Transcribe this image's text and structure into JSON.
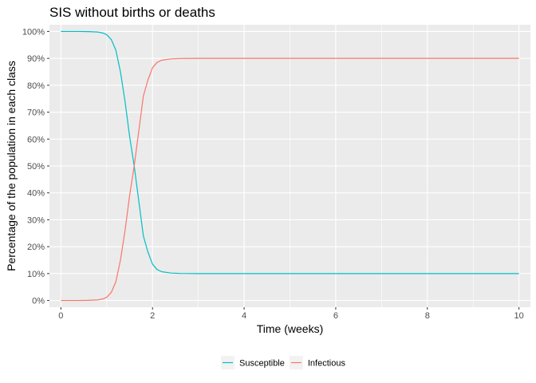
{
  "chart_data": {
    "type": "line",
    "title": "SIS without births or deaths",
    "xlabel": "Time (weeks)",
    "ylabel": "Percentage of the population in each class",
    "xlim": [
      -0.25,
      10.25
    ],
    "ylim": [
      -0.025,
      1.025
    ],
    "x_ticks": [
      {
        "value": 0,
        "label": "0"
      },
      {
        "value": 2,
        "label": "2"
      },
      {
        "value": 4,
        "label": "4"
      },
      {
        "value": 6,
        "label": "6"
      },
      {
        "value": 8,
        "label": "8"
      },
      {
        "value": 10,
        "label": "10"
      }
    ],
    "y_ticks": [
      {
        "value": 0.0,
        "label": "0%"
      },
      {
        "value": 0.1,
        "label": "10%"
      },
      {
        "value": 0.2,
        "label": "20%"
      },
      {
        "value": 0.3,
        "label": "30%"
      },
      {
        "value": 0.4,
        "label": "40%"
      },
      {
        "value": 0.5,
        "label": "50%"
      },
      {
        "value": 0.6,
        "label": "60%"
      },
      {
        "value": 0.7,
        "label": "70%"
      },
      {
        "value": 0.8,
        "label": "80%"
      },
      {
        "value": 0.9,
        "label": "90%"
      },
      {
        "value": 1.0,
        "label": "100%"
      }
    ],
    "grid": true,
    "panel_background": "#ebebeb",
    "grid_color": "#ffffff",
    "legend_position": "bottom",
    "x": [
      0,
      0.2,
      0.4,
      0.6,
      0.8,
      0.9,
      1.0,
      1.1,
      1.2,
      1.3,
      1.4,
      1.5,
      1.6,
      1.7,
      1.8,
      1.9,
      2.0,
      2.1,
      2.2,
      2.4,
      2.6,
      3.0,
      4.0,
      5.0,
      6.0,
      7.0,
      8.0,
      9.0,
      10.0
    ],
    "series": [
      {
        "name": "Susceptible",
        "color": "#00bfc4",
        "values": [
          1.0,
          1.0,
          0.9999,
          0.9995,
          0.998,
          0.995,
          0.988,
          0.97,
          0.93,
          0.85,
          0.74,
          0.61,
          0.5,
          0.37,
          0.24,
          0.18,
          0.135,
          0.115,
          0.107,
          0.102,
          0.1005,
          0.1,
          0.1,
          0.1,
          0.1,
          0.1,
          0.1,
          0.1,
          0.1
        ]
      },
      {
        "name": "Infectious",
        "color": "#f8766d",
        "values": [
          0.0,
          0.0,
          0.0001,
          0.0005,
          0.002,
          0.005,
          0.012,
          0.03,
          0.07,
          0.15,
          0.26,
          0.39,
          0.5,
          0.63,
          0.76,
          0.82,
          0.865,
          0.885,
          0.893,
          0.898,
          0.8995,
          0.9,
          0.9,
          0.9,
          0.9,
          0.9,
          0.9,
          0.9,
          0.9
        ]
      }
    ]
  }
}
